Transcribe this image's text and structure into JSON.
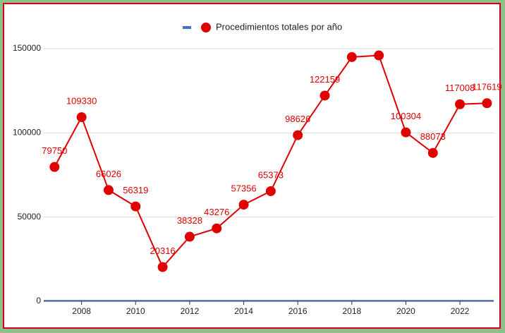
{
  "chart_data": {
    "type": "line",
    "x": [
      2007,
      2008,
      2009,
      2010,
      2011,
      2012,
      2013,
      2014,
      2015,
      2016,
      2017,
      2018,
      2019,
      2020,
      2021,
      2022,
      2023
    ],
    "series": [
      {
        "name": "Procedimientos totales por año",
        "color": "#e00000",
        "values": [
          79750,
          109330,
          66026,
          56319,
          20316,
          38328,
          43276,
          57356,
          65373,
          98626,
          122159,
          145000,
          146000,
          100304,
          88073,
          117008,
          117619
        ],
        "value_labels": [
          "79750",
          "109330",
          "66026",
          "56319",
          "20316",
          "38328",
          "43276",
          "57356",
          "65373",
          "98626",
          "122159",
          null,
          null,
          "100304",
          "88073",
          "117008",
          "117619"
        ]
      }
    ],
    "xlim": [
      2006.6,
      2023.25
    ],
    "xticks": [
      2008,
      2010,
      2012,
      2014,
      2016,
      2018,
      2020,
      2022
    ],
    "ylim": [
      0,
      150000
    ],
    "yticks": [
      0,
      50000,
      100000,
      150000
    ],
    "grid": true
  }
}
